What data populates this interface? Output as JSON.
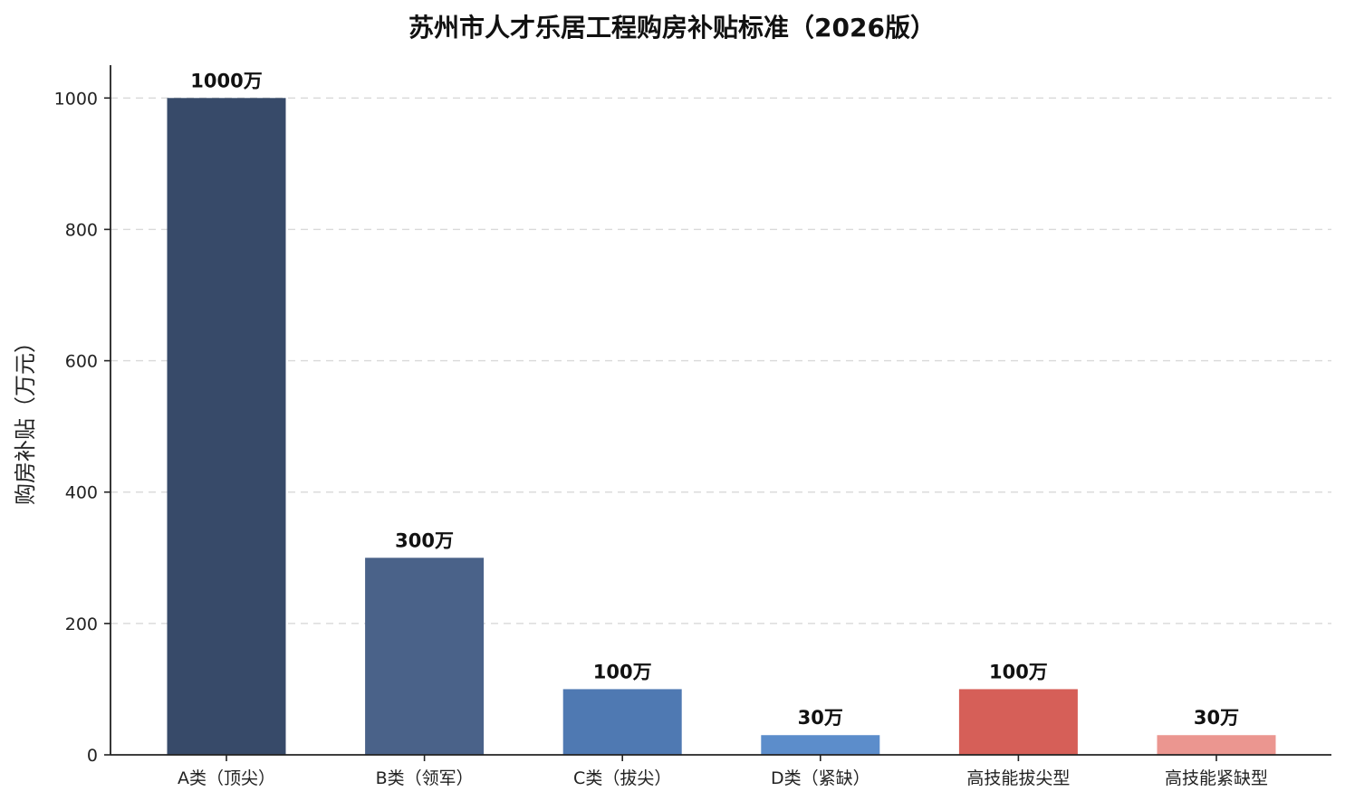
{
  "chart_data": {
    "type": "bar",
    "title": "苏州市人才乐居工程购房补贴标准（2026版）",
    "xlabel": "",
    "ylabel": "购房补贴（万元）",
    "categories": [
      "A类（顶尖）",
      "B类（领军）",
      "C类（拔尖）",
      "D类（紧缺）",
      "高技能拔尖型",
      "高技能紧缺型"
    ],
    "values": [
      1000,
      300,
      100,
      30,
      100,
      30
    ],
    "data_labels": [
      "1000万",
      "300万",
      "100万",
      "30万",
      "100万",
      "30万"
    ],
    "ylim": [
      0,
      1050
    ],
    "yticks": [
      0,
      200,
      400,
      600,
      800,
      1000
    ],
    "grid": true,
    "colors": [
      "#374A69",
      "#4A6289",
      "#4F79B2",
      "#5C8DCB",
      "#D65F58",
      "#EB9690"
    ]
  }
}
